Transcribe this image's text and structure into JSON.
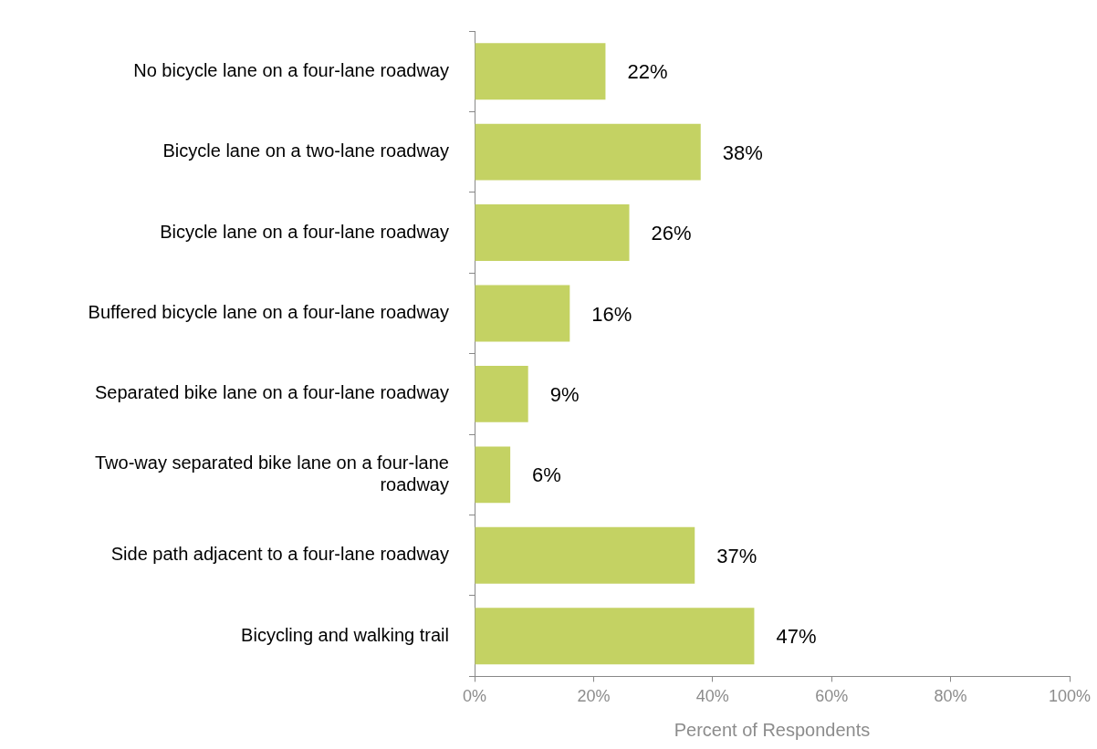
{
  "chart_data": {
    "type": "bar",
    "orientation": "horizontal",
    "xlabel": "Percent of Respondents",
    "categories": [
      "No bicycle lane on a four-lane roadway",
      "Bicycle lane on a two-lane roadway",
      "Bicycle lane on a four-lane roadway",
      "Buffered bicycle lane on a four-lane roadway",
      "Separated bike lane on a four-lane roadway",
      "Two-way separated bike lane on a four-lane roadway",
      "Side path adjacent to a four-lane roadway",
      "Bicycling and walking trail"
    ],
    "values": [
      22,
      38,
      26,
      16,
      9,
      6,
      37,
      47
    ],
    "value_labels": [
      "22%",
      "38%",
      "26%",
      "16%",
      "9%",
      "6%",
      "37%",
      "47%"
    ],
    "color": "#c4d263",
    "xlim": [
      0,
      100
    ],
    "xticks": [
      {
        "value": 0,
        "label": "0%"
      },
      {
        "value": 20,
        "label": "20%"
      },
      {
        "value": 40,
        "label": "40%"
      },
      {
        "value": 60,
        "label": "60%"
      },
      {
        "value": 80,
        "label": "80%"
      },
      {
        "value": 100,
        "label": "100%"
      }
    ],
    "grid": false,
    "legend": false
  }
}
